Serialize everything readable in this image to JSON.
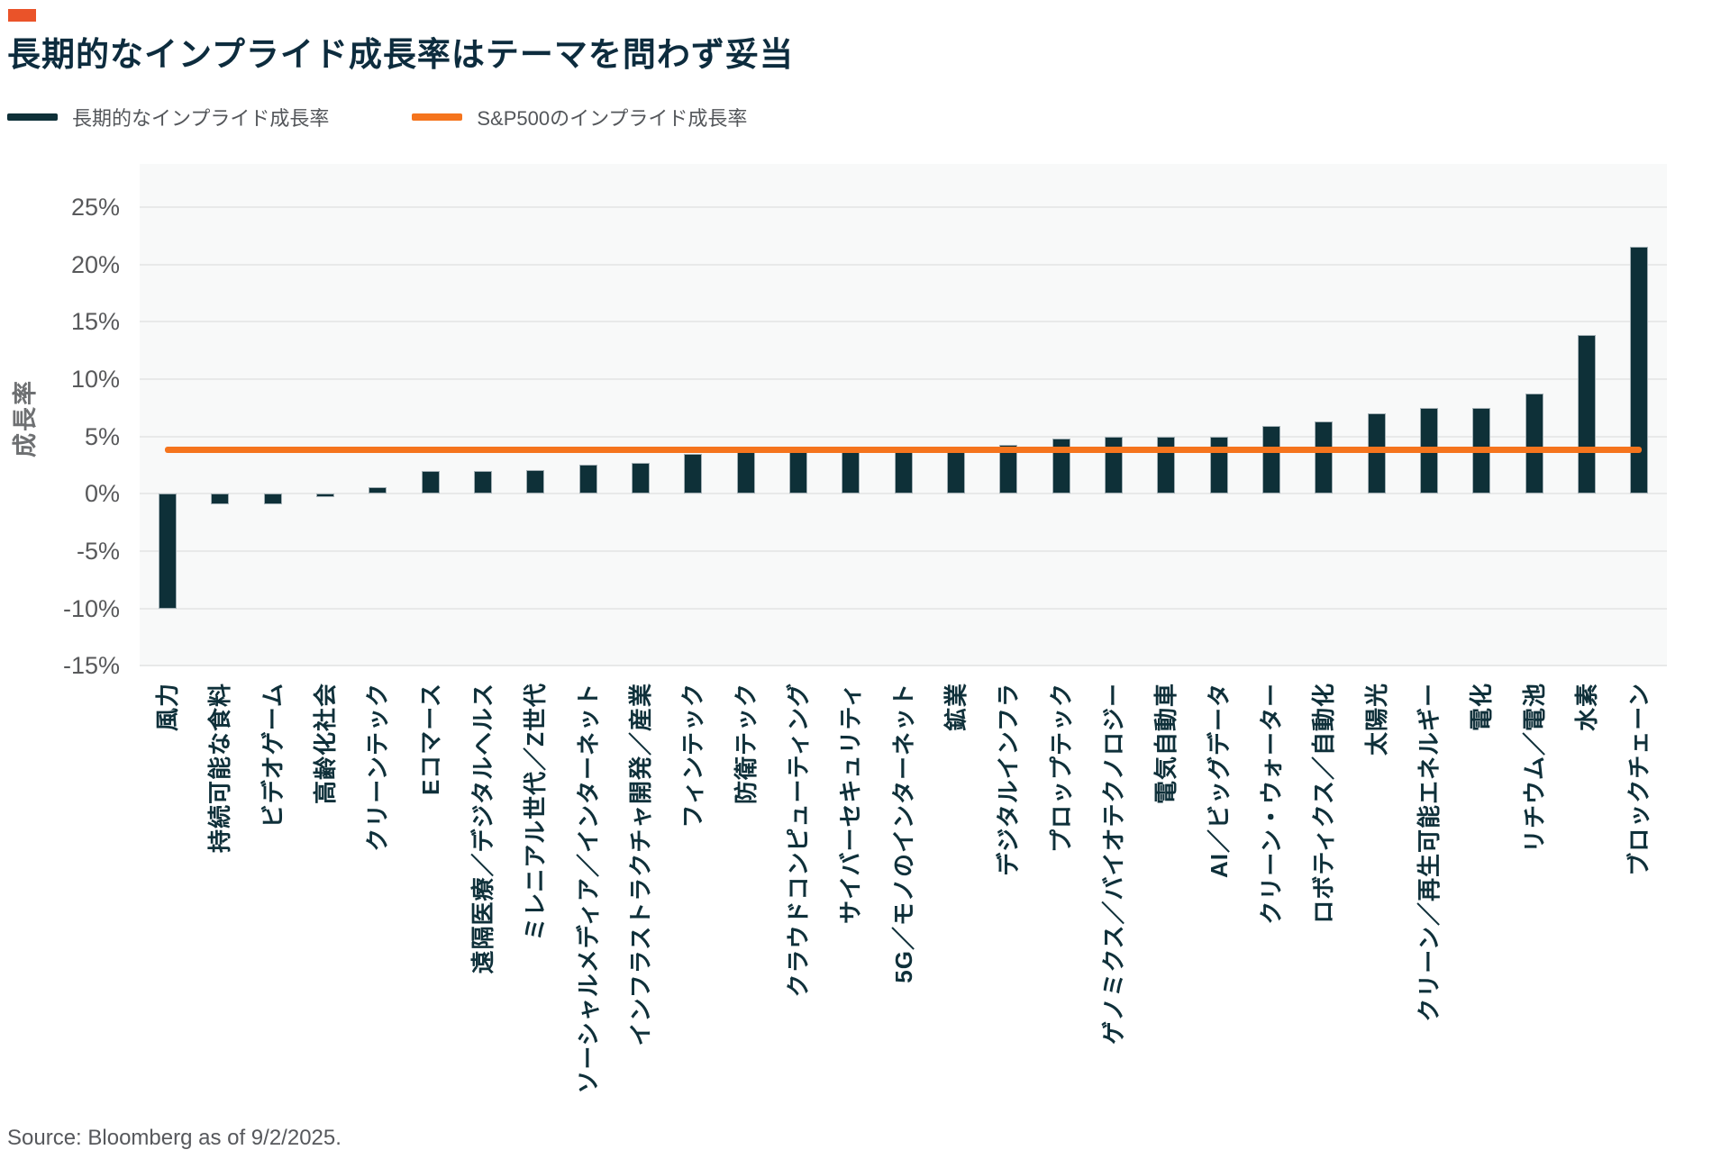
{
  "header": {
    "title": "長期的なインプライド成長率はテーマを問わず妥当"
  },
  "footer": {
    "source": "Source: Bloomberg as of 9/2/2025."
  },
  "colors": {
    "brand_mark_orange": "#EA5329",
    "bar_dark_teal": "#0E3038",
    "benchmark_orange": "#F5741D",
    "title_navy": "#0D2C3E",
    "axis_label_navy": "#0F303A"
  },
  "chart_data": {
    "type": "bar",
    "title": "長期的なインプライド成長率はテーマを問わず妥当",
    "xlabel": "",
    "ylabel": "成長率",
    "ylim": [
      -15,
      25
    ],
    "ytick_step": 5,
    "ytick_suffix": "%",
    "grid": "horizontal",
    "legend_position": "top-left",
    "categories": [
      "風力",
      "持続可能な食料",
      "ビデオゲーム",
      "高齢化社会",
      "クリーンテック",
      "Eコマース",
      "遠隔医療／デジタルヘルス",
      "ミレニアル世代／Z世代",
      "ソーシャルメディア／インターネット",
      "インフラストラクチャ開発／産業",
      "フィンテック",
      "防衛テック",
      "クラウドコンピューティング",
      "サイバーセキュリティ",
      "5G／モノのインターネット",
      "鉱業",
      "デジタルインフラ",
      "プロップテック",
      "ゲノミクス／バイオテクノロジー",
      "電気自動車",
      "AI／ビッグデータ",
      "クリーン・ウォーター",
      "ロボティクス／自動化",
      "太陽光",
      "クリーン／再生可能エネルギー",
      "電化",
      "リチウム／電池",
      "水素",
      "ブロックチェーン"
    ],
    "series": [
      {
        "name": "長期的なインプライド成長率",
        "type": "bar",
        "color": "#0E3038",
        "values": [
          -10.0,
          -0.9,
          -0.9,
          -0.3,
          0.6,
          2.0,
          2.0,
          2.1,
          2.5,
          2.7,
          3.5,
          3.7,
          3.7,
          3.9,
          4.0,
          4.0,
          4.3,
          4.8,
          5.0,
          5.0,
          5.0,
          5.9,
          6.3,
          7.0,
          7.5,
          7.5,
          8.7,
          13.8,
          21.5
        ]
      },
      {
        "name": "S&P500のインプライド成長率",
        "type": "line",
        "color": "#F5741D",
        "value": 3.8
      }
    ]
  }
}
